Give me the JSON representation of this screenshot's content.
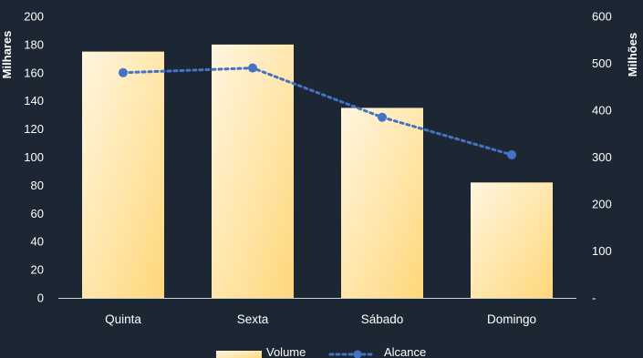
{
  "chart_data": {
    "type": "bar",
    "categories": [
      "Quinta",
      "Sexta",
      "Sábado",
      "Domingo"
    ],
    "series": [
      {
        "name": "Volume",
        "type": "bar",
        "axis": "left",
        "values": [
          175,
          180,
          135,
          82
        ],
        "color": "#ffe8a8"
      },
      {
        "name": "Alcance",
        "type": "line",
        "axis": "right",
        "style": "dotted",
        "marker": "circle",
        "values": [
          480,
          490,
          385,
          305
        ],
        "color": "#4472c4"
      }
    ],
    "y_left": {
      "label": "Milhares",
      "range": [
        0,
        200
      ],
      "ticks": [
        "0",
        "20",
        "40",
        "60",
        "80",
        "100",
        "120",
        "140",
        "160",
        "180",
        "200"
      ]
    },
    "y_right": {
      "label": "Milhões",
      "range": [
        0,
        600
      ],
      "ticks": [
        "-",
        "100",
        "200",
        "300",
        "400",
        "500",
        "600"
      ]
    },
    "grid": false,
    "legend": "bottom-center",
    "background": "#1d2633"
  }
}
